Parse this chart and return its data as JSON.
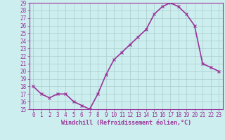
{
  "x": [
    0,
    1,
    2,
    3,
    4,
    5,
    6,
    7,
    8,
    9,
    10,
    11,
    12,
    13,
    14,
    15,
    16,
    17,
    18,
    19,
    20,
    21,
    22,
    23
  ],
  "y": [
    18,
    17,
    16.5,
    17,
    17,
    16,
    15.5,
    15,
    17,
    19.5,
    21.5,
    22.5,
    23.5,
    24.5,
    25.5,
    27.5,
    28.5,
    29,
    28.5,
    27.5,
    26,
    21,
    20.5,
    20
  ],
  "line_color": "#993399",
  "marker": "x",
  "marker_color": "#993399",
  "bg_color": "#cceeee",
  "grid_color": "#aacccc",
  "xlabel": "Windchill (Refroidissement éolien,°C)",
  "xlabel_color": "#993399",
  "tick_color": "#993399",
  "ylim": [
    15,
    29
  ],
  "yticks": [
    15,
    16,
    17,
    18,
    19,
    20,
    21,
    22,
    23,
    24,
    25,
    26,
    27,
    28,
    29
  ],
  "xticks": [
    0,
    1,
    2,
    3,
    4,
    5,
    6,
    7,
    8,
    9,
    10,
    11,
    12,
    13,
    14,
    15,
    16,
    17,
    18,
    19,
    20,
    21,
    22,
    23
  ],
  "spine_color": "#993399",
  "line_width": 1.2,
  "marker_size": 3,
  "tick_fontsize": 5.5,
  "xlabel_fontsize": 6.0
}
